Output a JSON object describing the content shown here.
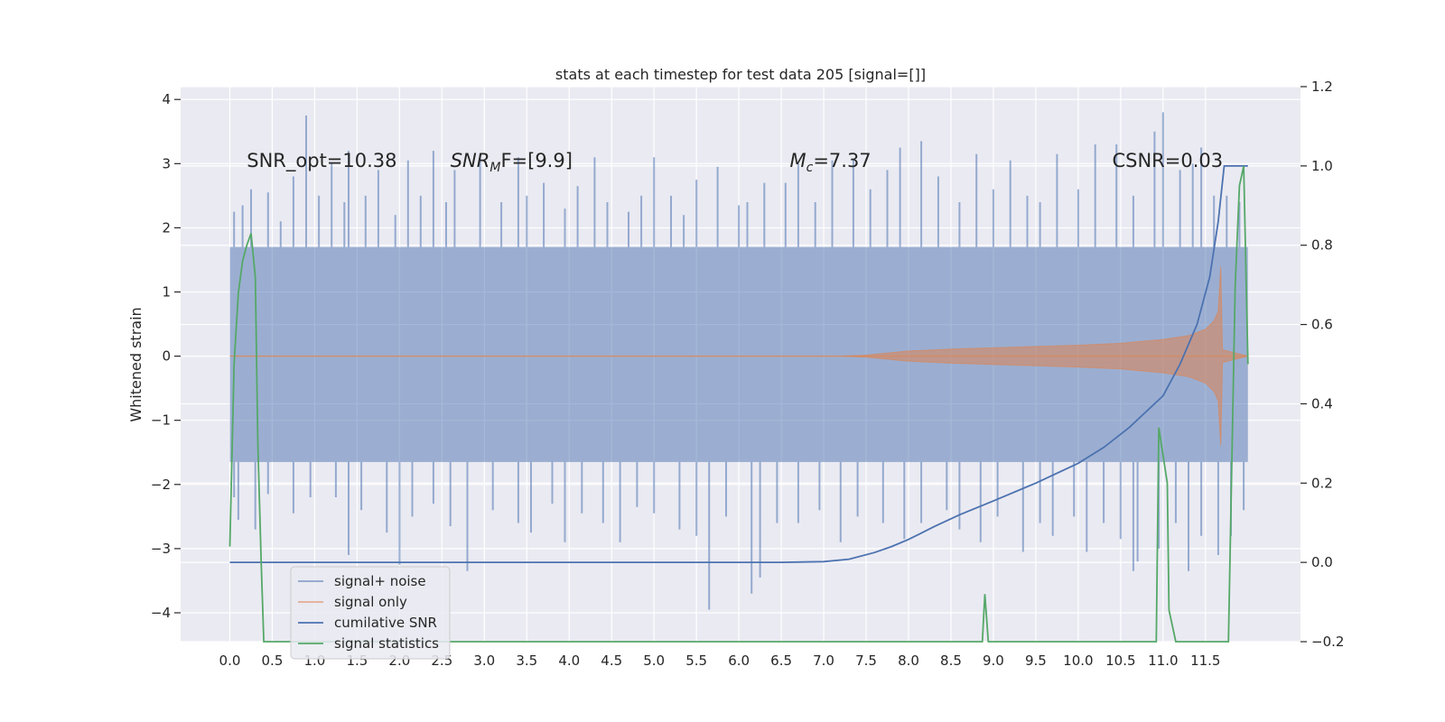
{
  "chart_data": {
    "type": "line",
    "title": "stats at each timestep for test data 205 [signal=[]]",
    "ylabel": "Whitened strain",
    "xlabel": "",
    "xlim": [
      -0.58,
      12.62
    ],
    "ylim": [
      -4.45,
      4.2
    ],
    "y2lim": [
      -0.2,
      1.2
    ],
    "grid": true,
    "legend_position": "lower-left",
    "xticks": [
      "0.0",
      "0.5",
      "1.0",
      "1.5",
      "2.0",
      "2.5",
      "3.0",
      "3.5",
      "4.0",
      "4.5",
      "5.0",
      "5.5",
      "6.0",
      "6.5",
      "7.0",
      "7.5",
      "8.0",
      "8.5",
      "9.0",
      "9.5",
      "10.0",
      "10.5",
      "11.0",
      "11.5"
    ],
    "yticks": [
      "4",
      "3",
      "2",
      "1",
      "0",
      "−1",
      "−2",
      "−3",
      "−4"
    ],
    "y2ticks": [
      "1.2",
      "1.0",
      "0.8",
      "0.6",
      "0.4",
      "0.2",
      "0.0",
      "−0.2"
    ],
    "annotations": [
      {
        "x": 0.2,
        "y": 3.05,
        "text": "SNR_opt=10.38",
        "kind": "plain"
      },
      {
        "x": 2.6,
        "y": 3.05,
        "base": "SNR",
        "sub": "M",
        "tail": "F=[9.9]",
        "kind": "italic-sub"
      },
      {
        "x": 6.6,
        "y": 3.05,
        "base": "M",
        "sub": "c",
        "tail": "=7.37",
        "kind": "italic-sub"
      },
      {
        "x": 10.4,
        "y": 3.05,
        "text": "CSNR=0.03",
        "kind": "plain"
      }
    ],
    "series": [
      {
        "name": "signal+ noise",
        "color": "#4c72b0",
        "axis": "left",
        "style": "noise-band",
        "x_range": [
          0.0,
          12.0
        ],
        "band": [
          -1.65,
          1.7
        ],
        "peaks_up": [
          [
            0.05,
            2.25
          ],
          [
            0.15,
            2.35
          ],
          [
            0.25,
            2.6
          ],
          [
            0.45,
            2.55
          ],
          [
            0.6,
            2.1
          ],
          [
            0.75,
            2.8
          ],
          [
            0.9,
            3.75
          ],
          [
            1.05,
            2.5
          ],
          [
            1.2,
            3.0
          ],
          [
            1.35,
            2.4
          ],
          [
            1.4,
            3.2
          ],
          [
            1.6,
            2.5
          ],
          [
            1.75,
            2.9
          ],
          [
            1.95,
            2.2
          ],
          [
            2.1,
            3.05
          ],
          [
            2.25,
            2.5
          ],
          [
            2.4,
            3.2
          ],
          [
            2.55,
            2.4
          ],
          [
            2.65,
            2.9
          ],
          [
            2.95,
            3.15
          ],
          [
            3.2,
            2.4
          ],
          [
            3.4,
            3.1
          ],
          [
            3.5,
            2.5
          ],
          [
            3.7,
            2.7
          ],
          [
            3.95,
            2.3
          ],
          [
            4.1,
            2.65
          ],
          [
            4.3,
            3.1
          ],
          [
            4.45,
            2.4
          ],
          [
            4.7,
            2.25
          ],
          [
            4.85,
            2.5
          ],
          [
            5.0,
            3.1
          ],
          [
            5.2,
            2.5
          ],
          [
            5.35,
            2.2
          ],
          [
            5.5,
            2.75
          ],
          [
            5.75,
            2.95
          ],
          [
            6.0,
            2.35
          ],
          [
            6.1,
            2.4
          ],
          [
            6.3,
            2.7
          ],
          [
            6.55,
            2.7
          ],
          [
            6.7,
            3.0
          ],
          [
            6.9,
            2.4
          ],
          [
            7.1,
            3.05
          ],
          [
            7.35,
            3.05
          ],
          [
            7.55,
            2.6
          ],
          [
            7.75,
            2.9
          ],
          [
            7.9,
            3.25
          ],
          [
            8.15,
            3.35
          ],
          [
            8.35,
            2.8
          ],
          [
            8.6,
            2.4
          ],
          [
            8.8,
            3.15
          ],
          [
            9.0,
            2.6
          ],
          [
            9.2,
            3.05
          ],
          [
            9.4,
            2.5
          ],
          [
            9.55,
            2.4
          ],
          [
            9.75,
            3.15
          ],
          [
            10.0,
            2.6
          ],
          [
            10.2,
            3.3
          ],
          [
            10.45,
            3.3
          ],
          [
            10.65,
            2.5
          ],
          [
            10.9,
            3.5
          ],
          [
            11.0,
            3.8
          ],
          [
            11.2,
            2.9
          ],
          [
            11.35,
            3.0
          ],
          [
            11.45,
            3.25
          ],
          [
            11.6,
            2.5
          ],
          [
            11.75,
            2.5
          ],
          [
            11.9,
            2.4
          ]
        ],
        "peaks_down": [
          [
            0.05,
            -2.2
          ],
          [
            0.1,
            -2.55
          ],
          [
            0.3,
            -2.7
          ],
          [
            0.45,
            -2.15
          ],
          [
            0.75,
            -2.45
          ],
          [
            0.95,
            -2.2
          ],
          [
            1.25,
            -2.2
          ],
          [
            1.4,
            -3.1
          ],
          [
            1.55,
            -2.4
          ],
          [
            1.85,
            -2.75
          ],
          [
            2.0,
            -3.25
          ],
          [
            2.15,
            -2.5
          ],
          [
            2.4,
            -2.3
          ],
          [
            2.6,
            -2.65
          ],
          [
            2.8,
            -3.35
          ],
          [
            3.1,
            -2.4
          ],
          [
            3.4,
            -2.6
          ],
          [
            3.55,
            -2.75
          ],
          [
            3.8,
            -2.3
          ],
          [
            3.95,
            -2.9
          ],
          [
            4.15,
            -2.45
          ],
          [
            4.4,
            -2.6
          ],
          [
            4.6,
            -2.9
          ],
          [
            4.8,
            -2.35
          ],
          [
            5.0,
            -2.45
          ],
          [
            5.3,
            -2.7
          ],
          [
            5.5,
            -2.8
          ],
          [
            5.65,
            -3.95
          ],
          [
            5.85,
            -2.5
          ],
          [
            6.15,
            -3.7
          ],
          [
            6.25,
            -3.45
          ],
          [
            6.45,
            -2.6
          ],
          [
            6.7,
            -2.6
          ],
          [
            6.95,
            -2.4
          ],
          [
            7.2,
            -2.9
          ],
          [
            7.4,
            -2.5
          ],
          [
            7.7,
            -2.6
          ],
          [
            7.95,
            -2.85
          ],
          [
            8.15,
            -2.6
          ],
          [
            8.45,
            -2.4
          ],
          [
            8.6,
            -2.7
          ],
          [
            8.85,
            -2.9
          ],
          [
            9.05,
            -2.5
          ],
          [
            9.35,
            -3.05
          ],
          [
            9.55,
            -2.6
          ],
          [
            9.7,
            -2.8
          ],
          [
            9.95,
            -2.5
          ],
          [
            10.1,
            -3.05
          ],
          [
            10.3,
            -2.6
          ],
          [
            10.5,
            -2.85
          ],
          [
            10.65,
            -3.35
          ],
          [
            10.7,
            -3.2
          ],
          [
            10.95,
            -3.0
          ],
          [
            11.15,
            -2.6
          ],
          [
            11.3,
            -3.35
          ],
          [
            11.45,
            -2.8
          ],
          [
            11.65,
            -3.1
          ],
          [
            11.8,
            -2.8
          ],
          [
            11.95,
            -2.4
          ]
        ]
      },
      {
        "name": "signal only",
        "color": "#dd8452",
        "axis": "left",
        "style": "chirp-envelope",
        "envelope": [
          [
            0.0,
            0.0
          ],
          [
            7.2,
            0.0
          ],
          [
            7.5,
            0.015
          ],
          [
            8.0,
            0.08
          ],
          [
            8.5,
            0.11
          ],
          [
            9.0,
            0.13
          ],
          [
            9.5,
            0.15
          ],
          [
            10.0,
            0.17
          ],
          [
            10.5,
            0.2
          ],
          [
            11.0,
            0.26
          ],
          [
            11.3,
            0.32
          ],
          [
            11.5,
            0.42
          ],
          [
            11.6,
            0.55
          ],
          [
            11.65,
            0.7
          ],
          [
            11.68,
            1.4
          ],
          [
            11.7,
            0.1
          ],
          [
            12.0,
            0.0
          ]
        ]
      },
      {
        "name": "cumilative SNR",
        "color": "#4c72b0",
        "axis": "right",
        "points": [
          [
            0.0,
            0.0
          ],
          [
            6.5,
            0.0
          ],
          [
            7.0,
            0.002
          ],
          [
            7.3,
            0.008
          ],
          [
            7.6,
            0.025
          ],
          [
            7.8,
            0.04
          ],
          [
            8.0,
            0.058
          ],
          [
            8.3,
            0.09
          ],
          [
            8.6,
            0.12
          ],
          [
            9.0,
            0.155
          ],
          [
            9.5,
            0.2
          ],
          [
            10.0,
            0.25
          ],
          [
            10.3,
            0.29
          ],
          [
            10.6,
            0.34
          ],
          [
            11.0,
            0.42
          ],
          [
            11.2,
            0.5
          ],
          [
            11.4,
            0.6
          ],
          [
            11.55,
            0.72
          ],
          [
            11.65,
            0.86
          ],
          [
            11.72,
            1.0
          ],
          [
            12.0,
            1.0
          ]
        ]
      },
      {
        "name": "signal statistics",
        "color": "#55a868",
        "axis": "right",
        "points": [
          [
            0.0,
            0.04
          ],
          [
            0.05,
            0.5
          ],
          [
            0.1,
            0.68
          ],
          [
            0.15,
            0.76
          ],
          [
            0.2,
            0.8
          ],
          [
            0.25,
            0.83
          ],
          [
            0.3,
            0.72
          ],
          [
            0.33,
            0.3
          ],
          [
            0.37,
            0.0
          ],
          [
            0.4,
            -0.2
          ],
          [
            8.87,
            -0.2
          ],
          [
            8.9,
            -0.08
          ],
          [
            8.94,
            -0.2
          ],
          [
            10.92,
            -0.2
          ],
          [
            10.95,
            0.34
          ],
          [
            11.05,
            0.2
          ],
          [
            11.07,
            -0.12
          ],
          [
            11.15,
            -0.2
          ],
          [
            11.77,
            -0.2
          ],
          [
            11.85,
            0.7
          ],
          [
            11.9,
            0.95
          ],
          [
            11.95,
            1.0
          ],
          [
            12.0,
            0.5
          ]
        ]
      }
    ]
  }
}
